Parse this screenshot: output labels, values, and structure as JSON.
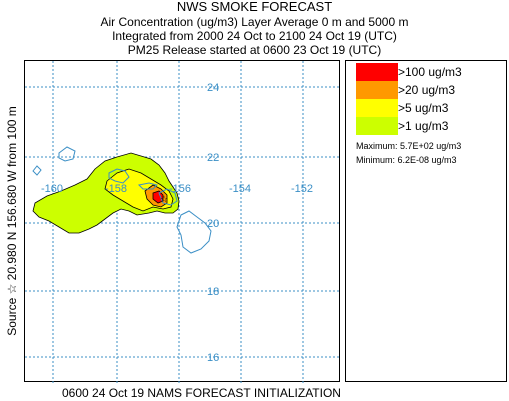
{
  "header": {
    "title": "NWS SMOKE FORECAST",
    "line2": "Air Concentration (ug/m3) Layer Average    0 m and  5000 m",
    "line3": "Integrated from 2000 24 Oct to 2100 24 Oct 19 (UTC)",
    "line4": "PM25 Release started at 0600 23 Oct 19 (UTC)"
  },
  "side_label": "Source ☆  20.980 N 156.680  W    from  100 m",
  "footer": "0600 24 Oct 19 NAMS FORECAST INITIALIZATION",
  "map": {
    "lat_labels": [
      "24",
      "22",
      "20",
      "18",
      "16"
    ],
    "lon_labels": [
      "-160",
      "-158",
      "-156",
      "-154",
      "-152"
    ],
    "grid_color": "#3b8fc6",
    "coast_color": "#3b8fc6"
  },
  "legend": {
    "items": [
      {
        "label": ">100 ug/m3",
        "color": "#ff0000"
      },
      {
        "label": ">20 ug/m3",
        "color": "#ff9900"
      },
      {
        "label": ">5 ug/m3",
        "color": "#ffff00"
      },
      {
        "label": ">1 ug/m3",
        "color": "#ccff00"
      }
    ],
    "maximum": "Maximum: 5.7E+02 ug/m3",
    "minimum": "Minimum: 6.2E-08 ug/m3"
  }
}
